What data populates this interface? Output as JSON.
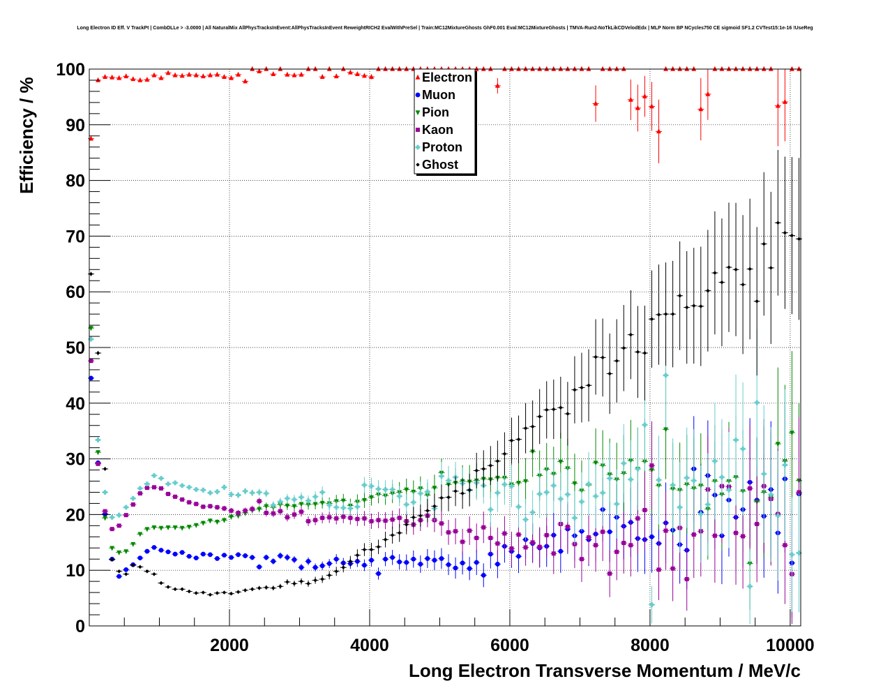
{
  "chart_data": {
    "type": "scatter",
    "title": "Long Electron ID Eff. V TrackPt | CombDLLe > -3.0000 | All NaturalMix AllPhysTracksInEvent:AllPhysTracksInEvent ReweightRICH2 EvalWithPreSel | Train:MC12MixtureGhosts GhF0.001 Eval:MC12MixtureGhosts | TMVA-Run2-NoTkLikCDVelodEdx | MLP Norm BP NCycles750 CE sigmoid SF1.2 CVTest15:1e-16 !UseReg",
    "xlabel": "Long Electron Transverse Momentum / MeV/c",
    "ylabel": "Efficiency / %",
    "xlim": [
      0,
      10150
    ],
    "ylim": [
      0,
      100
    ],
    "x_ticks": [
      2000,
      4000,
      6000,
      8000,
      10000
    ],
    "y_ticks": [
      0,
      10,
      20,
      30,
      40,
      50,
      60,
      70,
      80,
      90,
      100
    ],
    "grid": true,
    "legend_position": "top-center",
    "x": [
      25,
      125,
      225,
      325,
      425,
      525,
      625,
      725,
      825,
      925,
      1025,
      1125,
      1225,
      1325,
      1425,
      1525,
      1625,
      1725,
      1825,
      1925,
      2025,
      2125,
      2225,
      2325,
      2425,
      2525,
      2625,
      2725,
      2825,
      2925,
      3025,
      3125,
      3225,
      3325,
      3425,
      3525,
      3625,
      3725,
      3825,
      3925,
      4025,
      4125,
      4225,
      4325,
      4425,
      4525,
      4625,
      4725,
      4825,
      4925,
      5025,
      5125,
      5225,
      5325,
      5425,
      5525,
      5625,
      5725,
      5825,
      5925,
      6025,
      6125,
      6225,
      6325,
      6425,
      6525,
      6625,
      6725,
      6825,
      6925,
      7025,
      7125,
      7225,
      7325,
      7425,
      7525,
      7625,
      7725,
      7825,
      7925,
      8025,
      8125,
      8225,
      8325,
      8425,
      8525,
      8625,
      8725,
      8825,
      8925,
      9025,
      9125,
      9225,
      9325,
      9425,
      9525,
      9625,
      9725,
      9825,
      9925,
      10025,
      10125
    ],
    "series": [
      {
        "name": "Electron",
        "color": "#ff0000",
        "marker": "triangle-up",
        "values": [
          87.5,
          98.0,
          98.6,
          98.5,
          98.4,
          98.7,
          98.2,
          98.0,
          98.1,
          98.9,
          98.4,
          99.3,
          98.9,
          98.8,
          99.0,
          98.9,
          98.7,
          98.9,
          99.0,
          98.6,
          98.4,
          99.0,
          97.8,
          100,
          99.6,
          100,
          99.1,
          100,
          99.0,
          98.9,
          99.0,
          100,
          100,
          98.6,
          100,
          98.7,
          100,
          99.4,
          99.1,
          98.8,
          98.6,
          100,
          100,
          100,
          100,
          100,
          100,
          100,
          100,
          100,
          100,
          100,
          100,
          100,
          100,
          100,
          100,
          100,
          97.0,
          100,
          100,
          100,
          100,
          100,
          100,
          100,
          100,
          100,
          100,
          100,
          100,
          100,
          93.8,
          100,
          100,
          100,
          100,
          94.5,
          93.0,
          95.1,
          93.3,
          88.8,
          100,
          100,
          100,
          100,
          100,
          92.8,
          95.5,
          100,
          100,
          100,
          100,
          100,
          100,
          100,
          100,
          100,
          93.4,
          94.1,
          100,
          100
        ]
      },
      {
        "name": "Muon",
        "color": "#0000ff",
        "marker": "circle",
        "values": [
          44.5,
          29.3,
          20.1,
          12.0,
          8.9,
          10.1,
          11.0,
          12.2,
          13.4,
          14.1,
          13.6,
          13.3,
          12.9,
          13.2,
          12.5,
          12.2,
          12.9,
          12.8,
          12.1,
          12.7,
          12.3,
          12.8,
          12.6,
          12.3,
          10.6,
          12.3,
          11.6,
          12.6,
          12.3,
          11.9,
          10.5,
          11.6,
          10.5,
          10.8,
          11.2,
          12.0,
          11.3,
          11.2,
          11.6,
          10.9,
          11.8,
          9.4,
          12.0,
          12.3,
          11.5,
          11.4,
          12.0,
          11.1,
          12.1,
          11.8,
          12.1,
          11.0,
          10.4,
          11.3,
          10.3,
          11.4,
          9.1,
          12.9,
          11.1,
          14.3,
          13.4,
          12.5,
          15.5,
          14.8,
          14.0,
          14.3,
          16.3,
          13.4,
          17.4,
          16.2,
          17.0,
          15.5,
          16.5,
          20.9,
          16.9,
          19.5,
          17.9,
          18.6,
          15.7,
          15.5,
          16.0,
          14.8,
          18.5,
          17.2,
          14.6,
          13.6,
          28.2,
          20.4,
          27.0,
          23.5,
          16.2,
          22.6,
          19.5,
          20.9,
          25.8,
          22.6,
          19.7,
          24.5,
          16.7,
          26.4,
          11.3,
          23.7
        ]
      },
      {
        "name": "Pion",
        "color": "#008800",
        "marker": "triangle-down",
        "values": [
          53.5,
          31.2,
          19.4,
          14.0,
          13.2,
          13.4,
          14.7,
          16.5,
          17.4,
          17.7,
          17.6,
          17.7,
          17.7,
          17.6,
          17.8,
          18.1,
          18.5,
          18.9,
          18.7,
          19.0,
          19.6,
          19.8,
          20.3,
          20.8,
          21.0,
          21.5,
          21.3,
          21.8,
          21.6,
          21.5,
          21.9,
          21.8,
          21.9,
          22.1,
          22.0,
          22.4,
          22.5,
          21.6,
          22.3,
          22.6,
          23.1,
          23.6,
          23.4,
          23.8,
          24.0,
          24.5,
          24.1,
          24.7,
          23.5,
          24.8,
          27.5,
          25.4,
          25.7,
          26.0,
          25.9,
          26.1,
          26.4,
          26.3,
          26.6,
          26.6,
          25.4,
          25.7,
          26.0,
          31.3,
          27.0,
          28.1,
          27.3,
          29.5,
          28.3,
          25.6,
          24.3,
          25.3,
          29.3,
          28.8,
          27.2,
          26.3,
          27.4,
          29.7,
          28.2,
          29.5,
          28.0,
          25.2,
          35.3,
          24.6,
          24.4,
          25.4,
          24.7,
          25.2,
          21.0,
          26.0,
          23.6,
          26.0,
          26.7,
          24.2,
          11.2,
          22.3,
          24.0,
          23.1,
          32.7,
          29.6,
          34.7,
          26.1
        ]
      },
      {
        "name": "Kaon",
        "color": "#990099",
        "marker": "square",
        "values": [
          47.6,
          29.1,
          20.6,
          17.4,
          18.0,
          19.9,
          21.8,
          23.8,
          24.8,
          24.9,
          24.7,
          23.7,
          23.2,
          22.7,
          22.2,
          21.9,
          21.4,
          21.5,
          21.3,
          21.1,
          20.7,
          20.3,
          20.7,
          21.0,
          22.4,
          20.3,
          20.2,
          20.6,
          19.5,
          20.0,
          20.5,
          18.8,
          19.0,
          19.4,
          19.5,
          19.3,
          19.6,
          19.4,
          19.2,
          19.3,
          18.8,
          19.0,
          18.9,
          19.1,
          19.4,
          18.8,
          18.2,
          19.0,
          19.8,
          19.0,
          18.4,
          16.8,
          17.0,
          15.1,
          17.1,
          15.8,
          17.7,
          15.8,
          14.8,
          16.6,
          13.9,
          16.4,
          14.1,
          15.0,
          14.2,
          16.3,
          13.0,
          18.3,
          17.8,
          14.7,
          12.0,
          15.9,
          14.5,
          16.9,
          9.4,
          13.3,
          14.9,
          14.5,
          19.3,
          20.8,
          28.8,
          10.1,
          17.1,
          10.3,
          17.6,
          8.4,
          16.4,
          17.0,
          24.5,
          16.2,
          25.1,
          25.0,
          16.7,
          16.1,
          24.7,
          18.3,
          25.1,
          22.8,
          20.1,
          14.5,
          9.3,
          24.0
        ]
      },
      {
        "name": "Proton",
        "color": "#66cccc",
        "marker": "cross",
        "values": [
          51.5,
          33.4,
          24.0,
          19.5,
          19.9,
          21.3,
          22.9,
          24.7,
          25.5,
          27.0,
          26.5,
          25.5,
          25.7,
          25.2,
          24.9,
          24.5,
          24.4,
          23.9,
          24.1,
          24.9,
          23.6,
          23.5,
          24.2,
          23.9,
          24.0,
          23.8,
          21.7,
          22.3,
          22.9,
          22.7,
          23.1,
          22.5,
          23.2,
          24.0,
          21.7,
          21.3,
          21.2,
          21.1,
          21.4,
          25.3,
          25.1,
          24.6,
          24.5,
          24.5,
          23.3,
          21.8,
          22.2,
          23.8,
          24.1,
          21.1,
          26.9,
          26.1,
          26.7,
          25.6,
          24.4,
          25.7,
          25.2,
          20.9,
          23.9,
          25.4,
          25.1,
          21.4,
          19.1,
          20.4,
          23.7,
          24.0,
          25.2,
          22.8,
          23.6,
          19.4,
          22.3,
          25.5,
          23.3,
          23.9,
          26.5,
          21.9,
          29.2,
          26.3,
          28.2,
          36.1,
          3.8,
          26.2,
          45.0,
          25.3,
          21.3,
          26.6,
          26.1,
          20.1,
          21.8,
          29.6,
          26.7,
          24.4,
          33.4,
          31.8,
          7.1,
          40.1,
          27.3,
          23.6,
          19.8,
          28.9,
          12.8,
          13.1
        ]
      },
      {
        "name": "Ghost",
        "color": "#000000",
        "marker": "star",
        "values": [
          63.2,
          49.0,
          28.2,
          11.9,
          9.8,
          9.3,
          10.9,
          10.6,
          9.8,
          9.3,
          7.7,
          7.0,
          6.6,
          6.6,
          6.2,
          5.9,
          6.0,
          5.6,
          5.9,
          6.0,
          5.8,
          6.1,
          6.4,
          6.6,
          6.8,
          6.9,
          6.8,
          7.1,
          7.9,
          7.6,
          8.0,
          7.6,
          8.2,
          8.4,
          9.1,
          9.8,
          10.5,
          11.6,
          12.7,
          13.7,
          13.7,
          14.2,
          15.5,
          16.3,
          16.7,
          18.2,
          19.5,
          19.8,
          20.7,
          21.5,
          23.0,
          23.1,
          24.2,
          23.8,
          24.4,
          27.9,
          28.2,
          28.8,
          29.6,
          30.9,
          33.3,
          33.5,
          35.5,
          35.8,
          37.6,
          38.8,
          38.9,
          39.2,
          38.1,
          42.4,
          42.8,
          43.2,
          48.3,
          48.2,
          45.3,
          47.6,
          49.9,
          52.3,
          49.2,
          49.0,
          55.1,
          55.9,
          56.0,
          56.0,
          59.3,
          57.2,
          57.5,
          57.4,
          60.2,
          63.4,
          61.7,
          64.4,
          64.0,
          61.3,
          64.1,
          58.3,
          68.6,
          64.3,
          72.4,
          70.6,
          70.1,
          69.5
        ]
      }
    ]
  }
}
